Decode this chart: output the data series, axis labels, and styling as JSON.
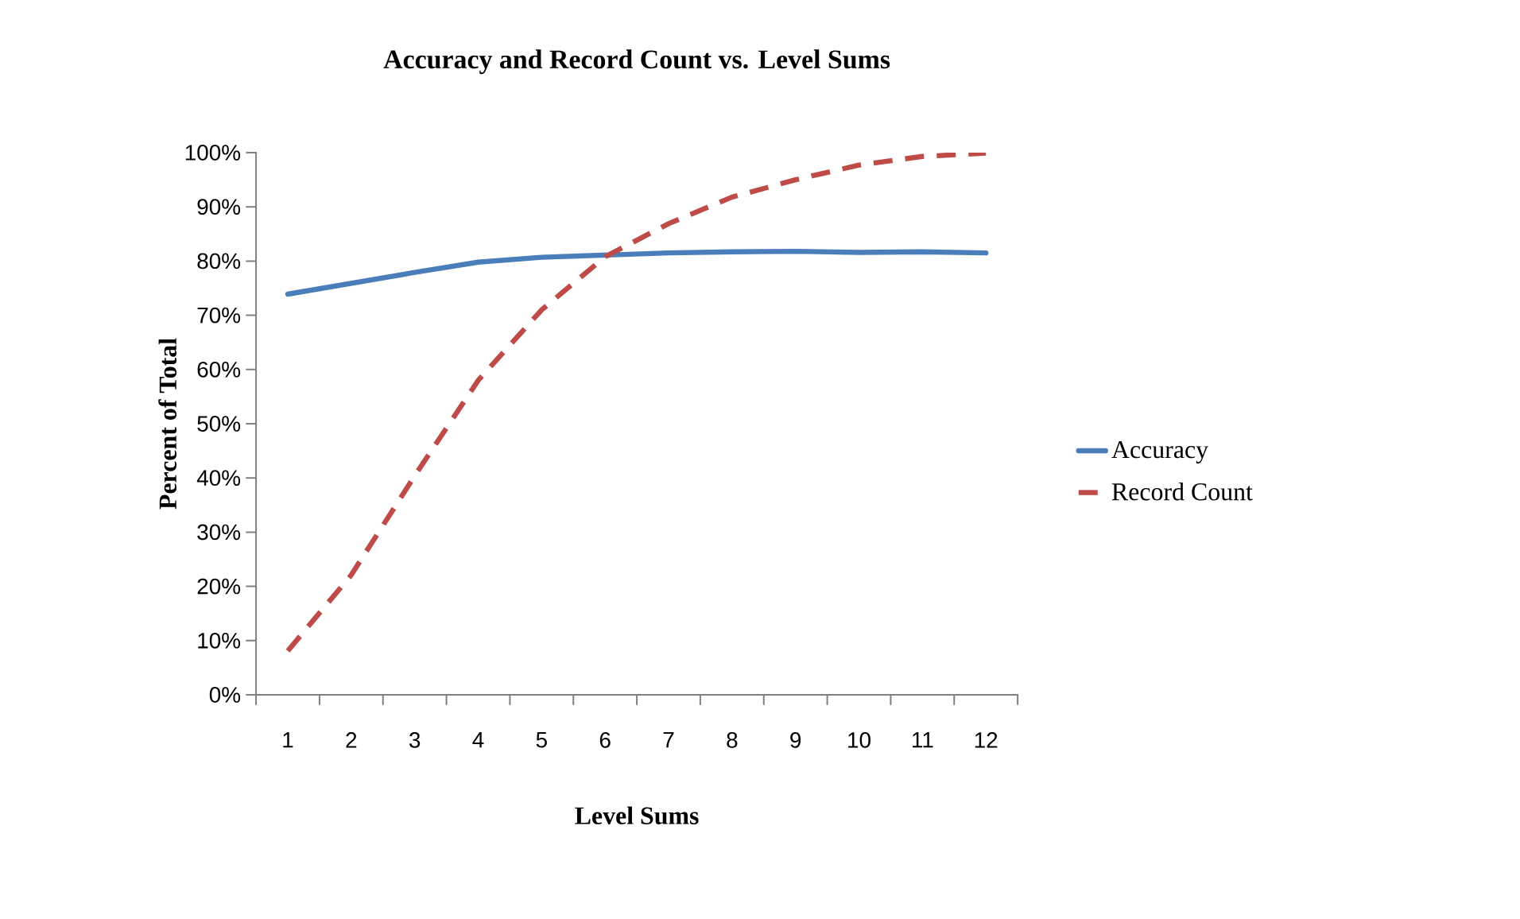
{
  "chart_data": {
    "type": "line",
    "title": "Accuracy and Record Count vs. Level Sums",
    "xlabel": "Level Sums",
    "ylabel": "Percent of Total",
    "categories": [
      "1",
      "2",
      "3",
      "4",
      "5",
      "6",
      "7",
      "8",
      "9",
      "10",
      "11",
      "12"
    ],
    "series": [
      {
        "name": "Accuracy",
        "color": "#4a7ebb",
        "line_style": "solid",
        "values": [
          73.9,
          75.9,
          77.9,
          79.8,
          80.7,
          81.1,
          81.5,
          81.7,
          81.8,
          81.6,
          81.7,
          81.5
        ]
      },
      {
        "name": "Record Count",
        "color": "#be4b48",
        "line_style": "dashed",
        "values": [
          8.1,
          22.1,
          40.4,
          58,
          71,
          80.8,
          86.9,
          91.8,
          95,
          97.7,
          99.3,
          99.9
        ]
      }
    ],
    "ylim": [
      0,
      100
    ],
    "yticks": [
      {
        "value": 0,
        "label": "0%"
      },
      {
        "value": 10,
        "label": "10%"
      },
      {
        "value": 20,
        "label": "20%"
      },
      {
        "value": 30,
        "label": "30%"
      },
      {
        "value": 40,
        "label": "40%"
      },
      {
        "value": 50,
        "label": "50%"
      },
      {
        "value": 60,
        "label": "60%"
      },
      {
        "value": 70,
        "label": "70%"
      },
      {
        "value": 80,
        "label": "80%"
      },
      {
        "value": 90,
        "label": "90%"
      },
      {
        "value": 100,
        "label": "100%"
      }
    ],
    "grid": false,
    "legend": "right",
    "marker": "none"
  }
}
